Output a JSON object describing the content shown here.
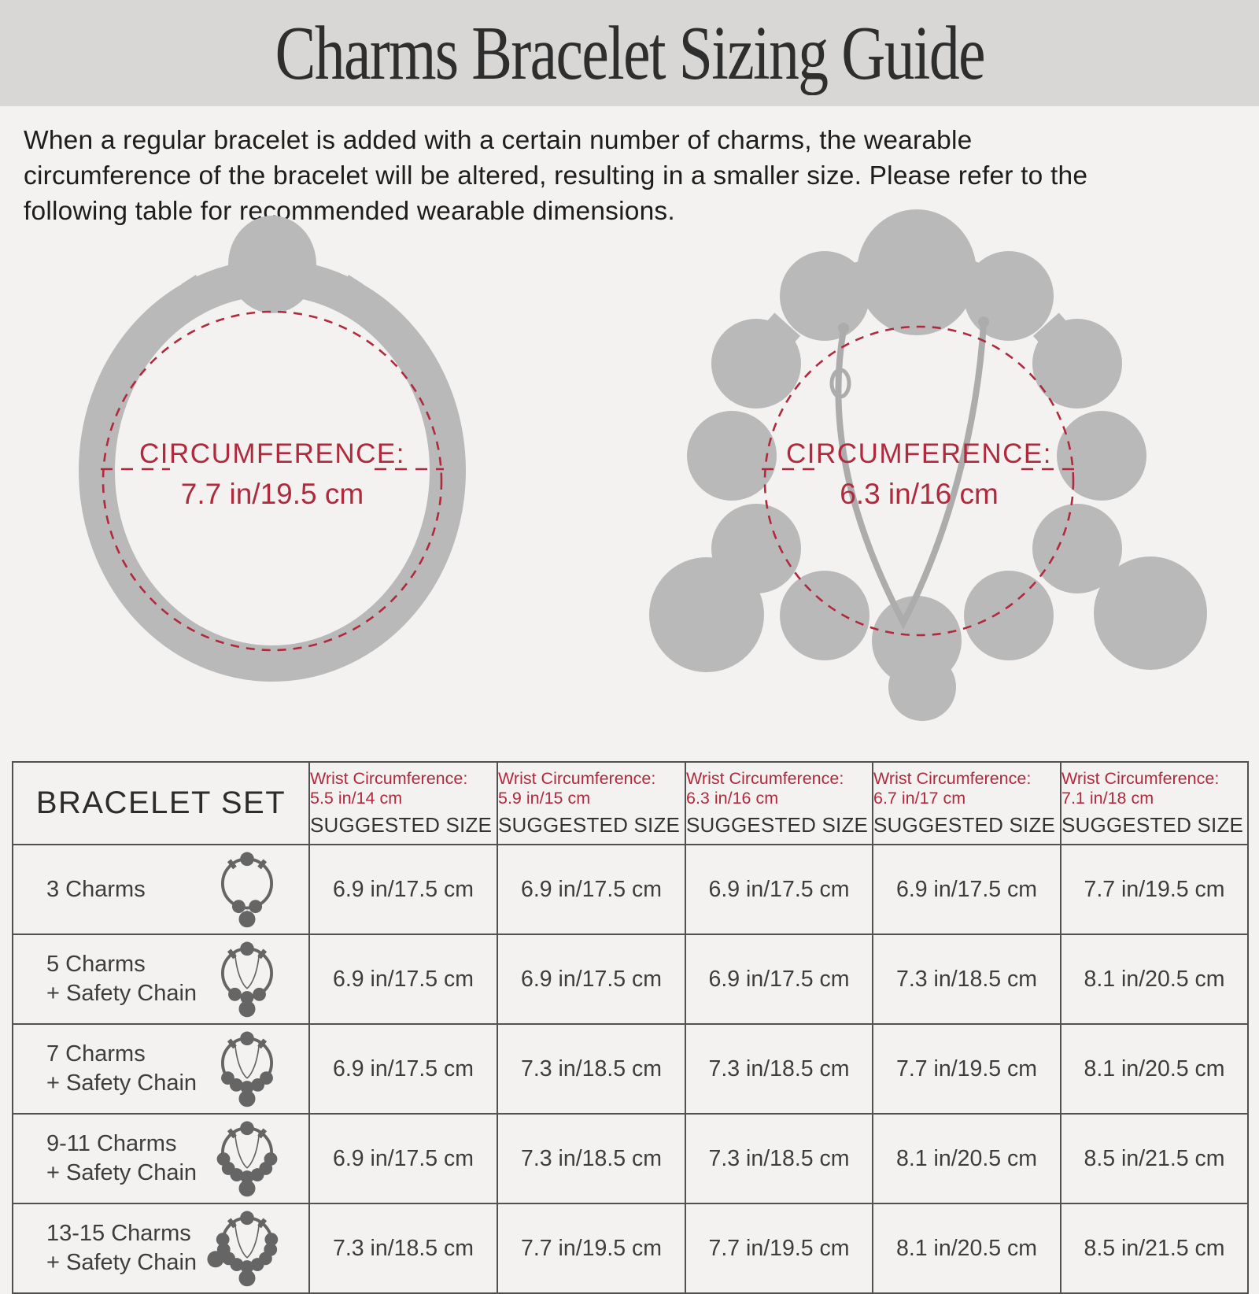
{
  "page": {
    "title": "Charms Bracelet Sizing Guide",
    "intro_lines": [
      "When a regular bracelet is added with a certain number of charms, the wearable",
      "circumference of the bracelet will be altered, resulting in a smaller size. Please refer to the",
      "following table for recommended wearable dimensions."
    ],
    "colors": {
      "accent_red": "#b02a3e",
      "banner_gray": "#d8d7d6",
      "page_bg": "#f3f2f1",
      "silhouette_gray": "#bab9b9",
      "icon_gray": "#656565",
      "table_border": "#515151"
    }
  },
  "diagrams": [
    {
      "name": "plain-bracelet",
      "line1": "CIRCUMFERENCE:",
      "line2": "7.7 in/19.5 cm"
    },
    {
      "name": "charm-bracelet-with-safety-chain",
      "line1": "CIRCUMFERENCE:",
      "line2": "6.3 in/16 cm"
    }
  ],
  "table": {
    "first_header": "BRACELET SET",
    "wrist_prefix": "Wrist Circumference:",
    "sizes": [
      "5.5 in/14 cm",
      "5.9 in/15 cm",
      "6.3 in/16 cm",
      "6.7 in/17 cm",
      "7.1 in/18 cm"
    ],
    "suggested": "SUGGESTED SIZE",
    "rows": [
      {
        "label_lines": [
          "3 Charms"
        ],
        "icon": {
          "beads": [
            160,
            200
          ],
          "chain": false,
          "dangles": [
            180
          ]
        },
        "values": [
          "6.9 in/17.5 cm",
          "6.9 in/17.5 cm",
          "6.9 in/17.5 cm",
          "6.9 in/17.5 cm",
          "7.7 in/19.5 cm"
        ]
      },
      {
        "label_lines": [
          "5 Charms",
          "+ Safety Chain"
        ],
        "icon": {
          "beads": [
            150,
            180,
            210
          ],
          "chain": true,
          "dangles": [
            180
          ]
        },
        "values": [
          "6.9 in/17.5 cm",
          "6.9 in/17.5 cm",
          "6.9 in/17.5 cm",
          "7.3 in/18.5 cm",
          "8.1 in/20.5 cm"
        ]
      },
      {
        "label_lines": [
          "7 Charms",
          "+ Safety Chain"
        ],
        "icon": {
          "beads": [
            128,
            154,
            180,
            206,
            232
          ],
          "chain": true,
          "dangles": [
            180
          ]
        },
        "values": [
          "6.9 in/17.5 cm",
          "7.3 in/18.5 cm",
          "7.3 in/18.5 cm",
          "7.7 in/19.5 cm",
          "8.1 in/20.5 cm"
        ]
      },
      {
        "label_lines": [
          "9-11 Charms",
          "+ Safety Chain"
        ],
        "icon": {
          "beads": [
            105,
            130,
            155,
            180,
            205,
            230,
            255
          ],
          "chain": true,
          "dangles": [
            180
          ]
        },
        "values": [
          "6.9 in/17.5 cm",
          "7.3 in/18.5 cm",
          "7.3 in/18.5 cm",
          "8.1 in/20.5 cm",
          "8.5 in/21.5 cm"
        ]
      },
      {
        "label_lines": [
          "13-15 Charms",
          "+ Safety Chain"
        ],
        "icon": {
          "beads": [
            83,
            107,
            131,
            155,
            180,
            205,
            229,
            253,
            277
          ],
          "chain": true,
          "dangles": [
            180,
            242
          ]
        },
        "values": [
          "7.3 in/18.5 cm",
          "7.7 in/19.5 cm",
          "7.7 in/19.5 cm",
          "8.1 in/20.5 cm",
          "8.5 in/21.5 cm"
        ]
      }
    ]
  }
}
